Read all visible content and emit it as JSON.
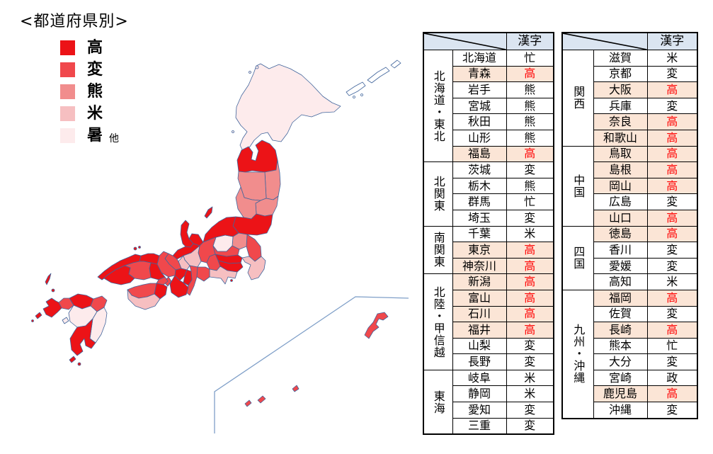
{
  "chart_data": {
    "type": "heatmap",
    "subtype": "japan-prefecture-choropleth",
    "title": "<都道府県別>",
    "column_header": "漢字",
    "highlight_kanji": "高",
    "legend_position": "top-left",
    "legend": [
      {
        "kanji": "高",
        "color": "#ec1317"
      },
      {
        "kanji": "変",
        "color": "#f0484c"
      },
      {
        "kanji": "熊",
        "color": "#f18d8d"
      },
      {
        "kanji": "米",
        "color": "#f6bfc1"
      },
      {
        "kanji": "暑",
        "color": "#fdebec",
        "note": "他"
      }
    ],
    "tables": [
      {
        "groups": [
          {
            "region": "北海道・東北",
            "rows": [
              {
                "pref": "北海道",
                "kanji": "忙"
              },
              {
                "pref": "青森",
                "kanji": "高"
              },
              {
                "pref": "岩手",
                "kanji": "熊"
              },
              {
                "pref": "宮城",
                "kanji": "熊"
              },
              {
                "pref": "秋田",
                "kanji": "熊"
              },
              {
                "pref": "山形",
                "kanji": "熊"
              },
              {
                "pref": "福島",
                "kanji": "高"
              }
            ]
          },
          {
            "region": "北関東",
            "rows": [
              {
                "pref": "茨城",
                "kanji": "変"
              },
              {
                "pref": "栃木",
                "kanji": "熊"
              },
              {
                "pref": "群馬",
                "kanji": "忙"
              },
              {
                "pref": "埼玉",
                "kanji": "変"
              }
            ]
          },
          {
            "region": "南関東",
            "rows": [
              {
                "pref": "千葉",
                "kanji": "米"
              },
              {
                "pref": "東京",
                "kanji": "高"
              },
              {
                "pref": "神奈川",
                "kanji": "高"
              }
            ]
          },
          {
            "region": "北陸・甲信越",
            "rows": [
              {
                "pref": "新潟",
                "kanji": "高"
              },
              {
                "pref": "富山",
                "kanji": "高"
              },
              {
                "pref": "石川",
                "kanji": "高"
              },
              {
                "pref": "福井",
                "kanji": "高"
              },
              {
                "pref": "山梨",
                "kanji": "変"
              },
              {
                "pref": "長野",
                "kanji": "変"
              }
            ]
          },
          {
            "region": "東海",
            "rows": [
              {
                "pref": "岐阜",
                "kanji": "米"
              },
              {
                "pref": "静岡",
                "kanji": "米"
              },
              {
                "pref": "愛知",
                "kanji": "変"
              },
              {
                "pref": "三重",
                "kanji": "変"
              }
            ]
          }
        ]
      },
      {
        "groups": [
          {
            "region": "関西",
            "rows": [
              {
                "pref": "滋賀",
                "kanji": "米"
              },
              {
                "pref": "京都",
                "kanji": "変"
              },
              {
                "pref": "大阪",
                "kanji": "高"
              },
              {
                "pref": "兵庫",
                "kanji": "変"
              },
              {
                "pref": "奈良",
                "kanji": "高"
              },
              {
                "pref": "和歌山",
                "kanji": "高"
              }
            ]
          },
          {
            "region": "中国",
            "rows": [
              {
                "pref": "鳥取",
                "kanji": "高"
              },
              {
                "pref": "島根",
                "kanji": "高"
              },
              {
                "pref": "岡山",
                "kanji": "高"
              },
              {
                "pref": "広島",
                "kanji": "変"
              },
              {
                "pref": "山口",
                "kanji": "高"
              }
            ]
          },
          {
            "region": "四国",
            "rows": [
              {
                "pref": "徳島",
                "kanji": "高"
              },
              {
                "pref": "香川",
                "kanji": "変"
              },
              {
                "pref": "愛媛",
                "kanji": "変"
              },
              {
                "pref": "高知",
                "kanji": "米"
              }
            ]
          },
          {
            "region": "九州・沖縄",
            "rows": [
              {
                "pref": "福岡",
                "kanji": "高"
              },
              {
                "pref": "佐賀",
                "kanji": "変"
              },
              {
                "pref": "長崎",
                "kanji": "高"
              },
              {
                "pref": "熊本",
                "kanji": "忙"
              },
              {
                "pref": "大分",
                "kanji": "変"
              },
              {
                "pref": "宮崎",
                "kanji": "政"
              },
              {
                "pref": "鹿児島",
                "kanji": "高"
              },
              {
                "pref": "沖縄",
                "kanji": "変"
              }
            ]
          }
        ]
      }
    ],
    "colors": {
      "highlight_row_bg": "#fbe5d6",
      "header_bg": "#dbe5f1",
      "highlight_text": "#ff0000",
      "map_border": "#41659c",
      "inset_line": "#7f9fc8"
    }
  }
}
